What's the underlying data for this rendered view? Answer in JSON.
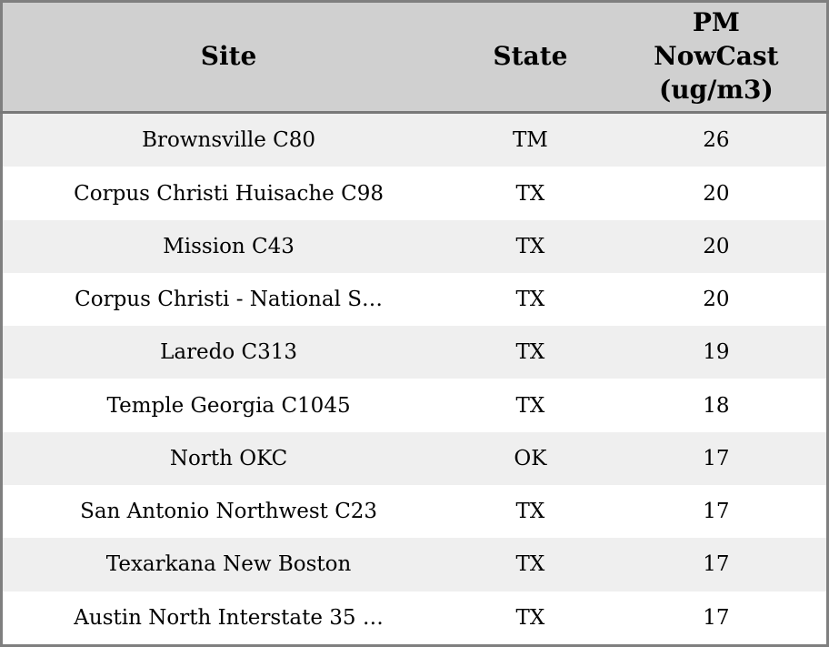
{
  "chart_data": {
    "type": "table",
    "title": "",
    "columns": [
      "Site",
      "State",
      "PM NowCast (ug/m3)"
    ],
    "rows": [
      [
        "Brownsville C80",
        "TM",
        26
      ],
      [
        "Corpus Christi Huisache C98",
        "TX",
        20
      ],
      [
        "Mission C43",
        "TX",
        20
      ],
      [
        "Corpus Christi - National S…",
        "TX",
        20
      ],
      [
        "Laredo C313",
        "TX",
        19
      ],
      [
        "Temple Georgia C1045",
        "TX",
        18
      ],
      [
        "North OKC",
        "OK",
        17
      ],
      [
        "San Antonio Northwest C23",
        "TX",
        17
      ],
      [
        "Texarkana New Boston",
        "TX",
        17
      ],
      [
        "Austin North Interstate 35 …",
        "TX",
        17
      ]
    ],
    "layout_hints": {
      "row_striping": true,
      "header_position": "top",
      "text_align": "center"
    }
  },
  "table": {
    "header_labels": {
      "site": "Site",
      "state": "State",
      "pm_nowcast": "PM\nNowCast\n(ug/m3)"
    }
  },
  "colors": {
    "header_bg": "#d0d0d0",
    "border": "#7f7f7f",
    "row_stripe": "#efefef",
    "row_plain": "#ffffff",
    "text": "#000000"
  }
}
